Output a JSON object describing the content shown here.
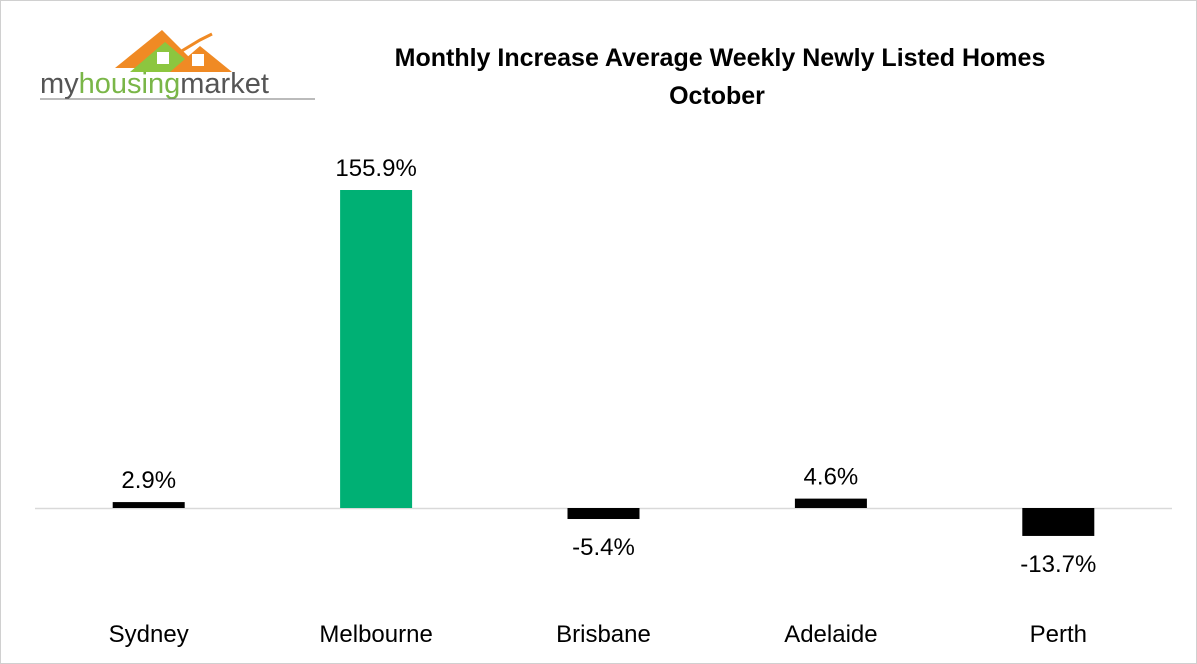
{
  "chart_data": {
    "type": "bar",
    "title": "Monthly Increase Average Weekly Newly Listed Homes",
    "subtitle": "October",
    "logo": {
      "parts": [
        "my",
        "housing",
        "market"
      ]
    },
    "categories": [
      "Sydney",
      "Melbourne",
      "Brisbane",
      "Adelaide",
      "Perth"
    ],
    "values": [
      2.9,
      155.9,
      -5.4,
      4.6,
      -13.7
    ],
    "value_labels": [
      "2.9%",
      "155.9%",
      "-5.4%",
      "4.6%",
      "-13.7%"
    ],
    "colors": [
      "#000000",
      "#00b074",
      "#000000",
      "#000000",
      "#000000"
    ]
  }
}
